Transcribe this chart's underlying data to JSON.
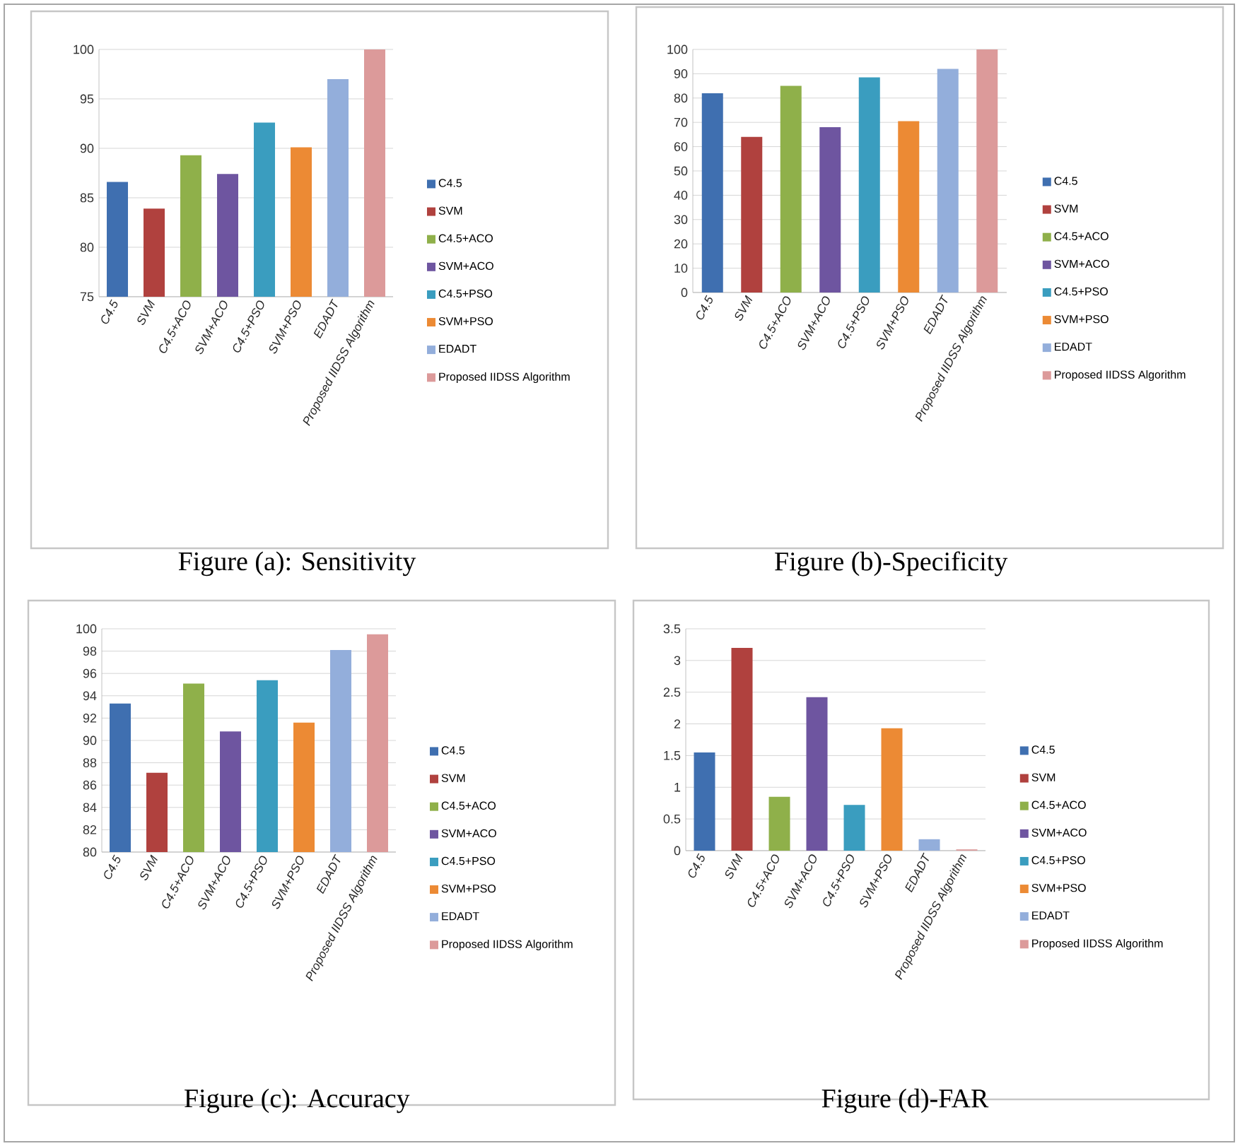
{
  "chart_data": [
    {
      "type": "bar",
      "title": "Figure (a): Sensitivity",
      "categories": [
        "C4.5",
        "SVM",
        "C4.5+ACO",
        "SVM+ACO",
        "C4.5+PSO",
        "SVM+PSO",
        "EDADT",
        "Proposed IIDSS Algorithm"
      ],
      "series": [
        {
          "name": "C4.5",
          "color": "#3f6fb0",
          "values": [
            86.6,
            null,
            null,
            null,
            null,
            null,
            null,
            null
          ]
        },
        {
          "name": "SVM",
          "color": "#b0413e",
          "values": [
            null,
            83.9,
            null,
            null,
            null,
            null,
            null,
            null
          ]
        },
        {
          "name": "C4.5+ACO",
          "color": "#8fb04a",
          "values": [
            null,
            null,
            89.3,
            null,
            null,
            null,
            null,
            null
          ]
        },
        {
          "name": "SVM+ACO",
          "color": "#6e55a0",
          "values": [
            null,
            null,
            null,
            87.4,
            null,
            null,
            null,
            null
          ]
        },
        {
          "name": "C4.5+PSO",
          "color": "#3a9dbf",
          "values": [
            null,
            null,
            null,
            null,
            92.6,
            null,
            null,
            null
          ]
        },
        {
          "name": "SVM+PSO",
          "color": "#ec8a34",
          "values": [
            null,
            null,
            null,
            null,
            null,
            90.1,
            null,
            null
          ]
        },
        {
          "name": "EDADT",
          "color": "#93aedb",
          "values": [
            null,
            null,
            null,
            null,
            null,
            null,
            97.0,
            null
          ]
        },
        {
          "name": "Proposed IIDSS Algorithm",
          "color": "#dc9a9a",
          "values": [
            null,
            null,
            null,
            null,
            null,
            null,
            null,
            100
          ]
        }
      ],
      "ylim": [
        75,
        100
      ],
      "yticks": [
        75,
        80,
        85,
        90,
        95,
        100
      ],
      "grid": "y",
      "legend": "right"
    },
    {
      "type": "bar",
      "title": "Figure (b)-Specificity",
      "categories": [
        "C4.5",
        "SVM",
        "C4.5+ACO",
        "SVM+ACO",
        "C4.5+PSO",
        "SVM+PSO",
        "EDADT",
        "Proposed IIDSS Algorithm"
      ],
      "series": [
        {
          "name": "C4.5",
          "color": "#3f6fb0",
          "values": [
            82,
            null,
            null,
            null,
            null,
            null,
            null,
            null
          ]
        },
        {
          "name": "SVM",
          "color": "#b0413e",
          "values": [
            null,
            64,
            null,
            null,
            null,
            null,
            null,
            null
          ]
        },
        {
          "name": "C4.5+ACO",
          "color": "#8fb04a",
          "values": [
            null,
            null,
            85,
            null,
            null,
            null,
            null,
            null
          ]
        },
        {
          "name": "SVM+ACO",
          "color": "#6e55a0",
          "values": [
            null,
            null,
            null,
            68,
            null,
            null,
            null,
            null
          ]
        },
        {
          "name": "C4.5+PSO",
          "color": "#3a9dbf",
          "values": [
            null,
            null,
            null,
            null,
            88.5,
            null,
            null,
            null
          ]
        },
        {
          "name": "SVM+PSO",
          "color": "#ec8a34",
          "values": [
            null,
            null,
            null,
            null,
            null,
            70.5,
            null,
            null
          ]
        },
        {
          "name": "EDADT",
          "color": "#93aedb",
          "values": [
            null,
            null,
            null,
            null,
            null,
            null,
            92,
            null
          ]
        },
        {
          "name": "Proposed IIDSS Algorithm",
          "color": "#dc9a9a",
          "values": [
            null,
            null,
            null,
            null,
            null,
            null,
            null,
            100
          ]
        }
      ],
      "ylim": [
        0,
        100
      ],
      "yticks": [
        0,
        10,
        20,
        30,
        40,
        50,
        60,
        70,
        80,
        90,
        100
      ],
      "grid": "y",
      "legend": "right"
    },
    {
      "type": "bar",
      "title": "Figure (c): Accuracy",
      "categories": [
        "C4.5",
        "SVM",
        "C4.5+ACO",
        "SVM+ACO",
        "C4.5+PSO",
        "SVM+PSO",
        "EDADT",
        "Proposed IIDSS Algorithm"
      ],
      "series": [
        {
          "name": "C4.5",
          "color": "#3f6fb0",
          "values": [
            93.3,
            null,
            null,
            null,
            null,
            null,
            null,
            null
          ]
        },
        {
          "name": "SVM",
          "color": "#b0413e",
          "values": [
            null,
            87.1,
            null,
            null,
            null,
            null,
            null,
            null
          ]
        },
        {
          "name": "C4.5+ACO",
          "color": "#8fb04a",
          "values": [
            null,
            null,
            95.1,
            null,
            null,
            null,
            null,
            null
          ]
        },
        {
          "name": "SVM+ACO",
          "color": "#6e55a0",
          "values": [
            null,
            null,
            null,
            90.8,
            null,
            null,
            null,
            null
          ]
        },
        {
          "name": "C4.5+PSO",
          "color": "#3a9dbf",
          "values": [
            null,
            null,
            null,
            null,
            95.4,
            null,
            null,
            null
          ]
        },
        {
          "name": "SVM+PSO",
          "color": "#ec8a34",
          "values": [
            null,
            null,
            null,
            null,
            null,
            91.6,
            null,
            null
          ]
        },
        {
          "name": "EDADT",
          "color": "#93aedb",
          "values": [
            null,
            null,
            null,
            null,
            null,
            null,
            98.1,
            null
          ]
        },
        {
          "name": "Proposed IIDSS Algorithm",
          "color": "#dc9a9a",
          "values": [
            null,
            null,
            null,
            null,
            null,
            null,
            null,
            99.5
          ]
        }
      ],
      "ylim": [
        80,
        100
      ],
      "yticks": [
        80,
        82,
        84,
        86,
        88,
        90,
        92,
        94,
        96,
        98,
        100
      ],
      "grid": "y",
      "legend": "right"
    },
    {
      "type": "bar",
      "title": "Figure (d)-FAR",
      "categories": [
        "C4.5",
        "SVM",
        "C4.5+ACO",
        "SVM+ACO",
        "C4.5+PSO",
        "SVM+PSO",
        "EDADT",
        "Proposed IIDSS Algorithm"
      ],
      "series": [
        {
          "name": "C4.5",
          "color": "#3f6fb0",
          "values": [
            1.55,
            null,
            null,
            null,
            null,
            null,
            null,
            null
          ]
        },
        {
          "name": "SVM",
          "color": "#b0413e",
          "values": [
            null,
            3.2,
            null,
            null,
            null,
            null,
            null,
            null
          ]
        },
        {
          "name": "C4.5+ACO",
          "color": "#8fb04a",
          "values": [
            null,
            null,
            0.85,
            null,
            null,
            null,
            null,
            null
          ]
        },
        {
          "name": "SVM+ACO",
          "color": "#6e55a0",
          "values": [
            null,
            null,
            null,
            2.42,
            null,
            null,
            null,
            null
          ]
        },
        {
          "name": "C4.5+PSO",
          "color": "#3a9dbf",
          "values": [
            null,
            null,
            null,
            null,
            0.72,
            null,
            null,
            null
          ]
        },
        {
          "name": "SVM+PSO",
          "color": "#ec8a34",
          "values": [
            null,
            null,
            null,
            null,
            null,
            1.93,
            null,
            null
          ]
        },
        {
          "name": "EDADT",
          "color": "#93aedb",
          "values": [
            null,
            null,
            null,
            null,
            null,
            null,
            0.18,
            null
          ]
        },
        {
          "name": "Proposed IIDSS Algorithm",
          "color": "#dc9a9a",
          "values": [
            null,
            null,
            null,
            null,
            null,
            null,
            null,
            0.02
          ]
        }
      ],
      "ylim": [
        0,
        3.5
      ],
      "yticks": [
        0,
        0.5,
        1,
        1.5,
        2,
        2.5,
        3,
        3.5
      ],
      "grid": "y",
      "legend": "right"
    }
  ]
}
